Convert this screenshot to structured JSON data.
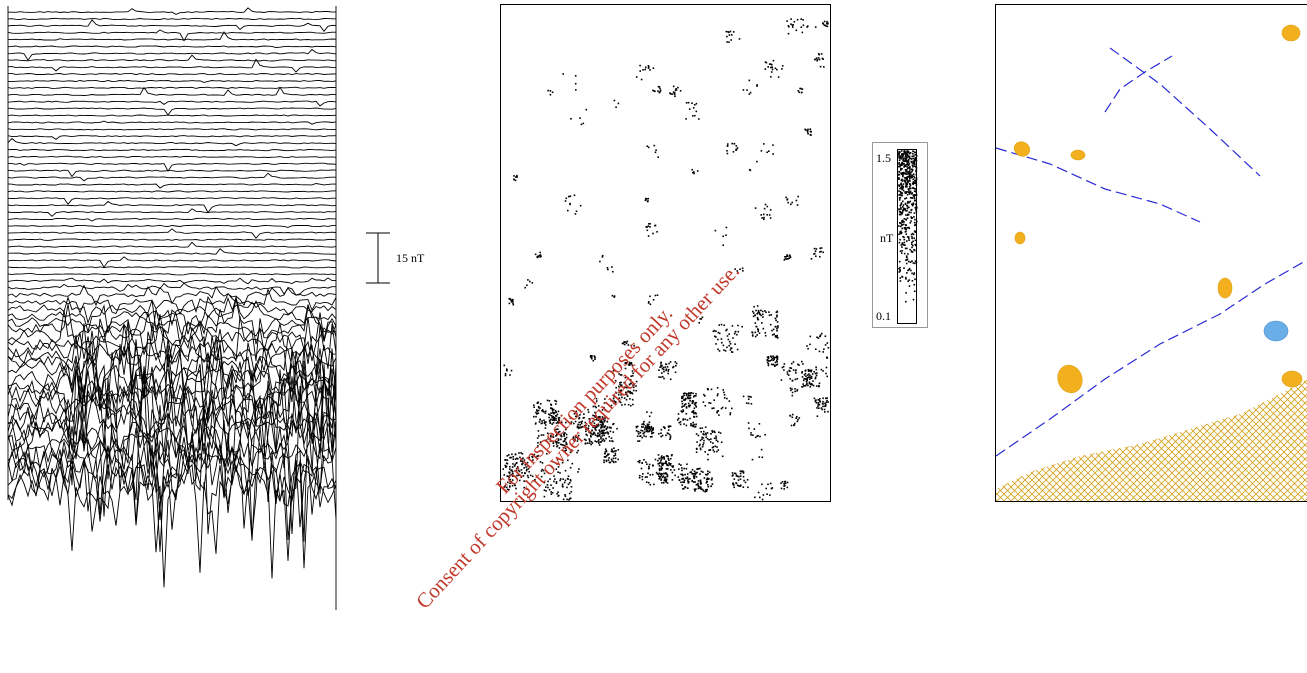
{
  "scale_bar": {
    "label": "15 nT"
  },
  "colorbar": {
    "max_label": "1.5",
    "unit_label": "nT",
    "min_label": "0.1"
  },
  "watermark": {
    "line1": "For inspection purposes only.",
    "line2": "Consent of copyright owner required for any other use."
  },
  "colors": {
    "trace": "#000000",
    "dots": "#000000",
    "feature_line": "#2b2bd6",
    "yellow_feature": "#f2b01e",
    "blue_feature": "#6aaee8",
    "hatch": "#d4a017",
    "watermark": "#c0392b"
  }
}
